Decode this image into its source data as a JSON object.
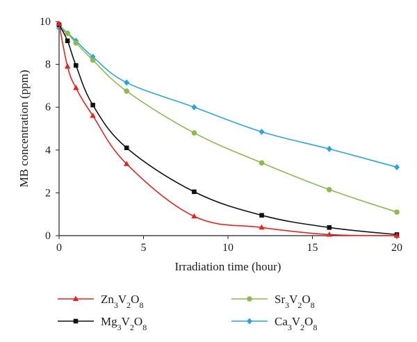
{
  "chart_data": {
    "type": "line",
    "xlabel": "Irradiation time (hour)",
    "ylabel": "MB concentration (ppm)",
    "xlim": [
      0,
      20
    ],
    "ylim": [
      0,
      10
    ],
    "xticks": [
      0,
      5,
      10,
      15,
      20
    ],
    "yticks": [
      0,
      2,
      4,
      6,
      8,
      10
    ],
    "grid": false,
    "legend": "bottom",
    "series": [
      {
        "name": "Zn3V2O8",
        "color": "#e8231f",
        "marker": "triangle",
        "x": [
          0,
          0.5,
          1,
          2,
          4,
          8,
          12,
          16,
          20
        ],
        "y": [
          9.9,
          7.9,
          6.9,
          5.6,
          3.35,
          0.9,
          0.38,
          0.05,
          0.0
        ]
      },
      {
        "name": "Mg3V2O8",
        "color": "#111111",
        "marker": "square",
        "x": [
          0,
          0.5,
          1,
          2,
          4,
          8,
          12,
          16,
          20
        ],
        "y": [
          9.85,
          9.1,
          7.95,
          6.1,
          4.1,
          2.05,
          0.95,
          0.38,
          0.05
        ]
      },
      {
        "name": "Sr3V2O8",
        "color": "#8db94f",
        "marker": "circle",
        "x": [
          0,
          0.5,
          1,
          2,
          4,
          8,
          12,
          16,
          20
        ],
        "y": [
          9.85,
          9.45,
          9.0,
          8.2,
          6.75,
          4.8,
          3.4,
          2.15,
          1.1
        ]
      },
      {
        "name": "Ca3V2O8",
        "color": "#2aa6de",
        "marker": "diamond",
        "x": [
          0,
          0.5,
          1,
          2,
          4,
          8,
          12,
          16,
          20
        ],
        "y": [
          9.7,
          9.45,
          9.1,
          8.35,
          7.15,
          6.0,
          4.85,
          4.05,
          3.2
        ]
      }
    ]
  }
}
